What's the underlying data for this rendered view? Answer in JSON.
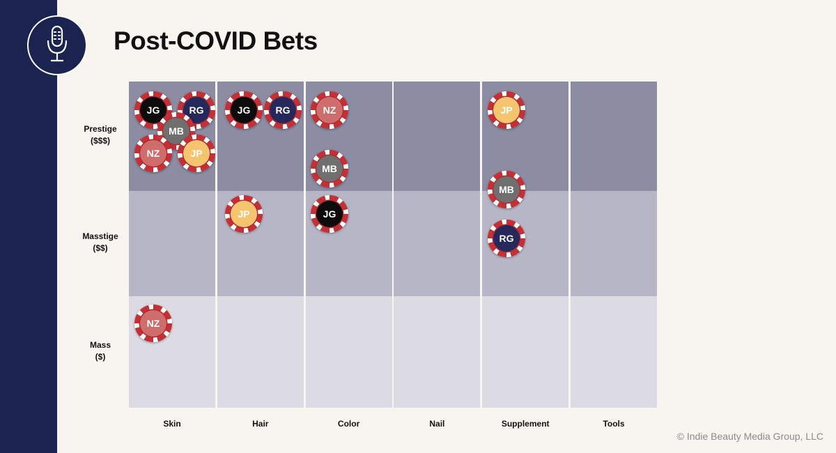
{
  "slide": {
    "title": "Post-COVID Bets",
    "copyright": "© Indie Beauty Media Group, LLC"
  },
  "icons": {
    "badge": "microphone-icon"
  },
  "grid": {
    "columns": [
      "Skin",
      "Hair",
      "Color",
      "Nail",
      "Supplement",
      "Tools"
    ],
    "rows": [
      {
        "name": "Prestige",
        "price": "($$$)",
        "color": "#8c8ca2"
      },
      {
        "name": "Masstige",
        "price": "($$)",
        "color": "#b6b6c6"
      },
      {
        "name": "Mass",
        "price": "($)",
        "color": "#dcdbe3"
      }
    ]
  },
  "chip_colors": {
    "JG": "#0c0c0c",
    "RG": "#25285a",
    "MB": "#6f6f6f",
    "NZ": "#cf6c6c",
    "JP": "#f4c56e"
  },
  "chips": [
    {
      "initials": "JG",
      "column": "Skin",
      "tier": "Prestige"
    },
    {
      "initials": "RG",
      "column": "Skin",
      "tier": "Prestige"
    },
    {
      "initials": "MB",
      "column": "Skin",
      "tier": "Prestige"
    },
    {
      "initials": "NZ",
      "column": "Skin",
      "tier": "Prestige"
    },
    {
      "initials": "JP",
      "column": "Skin",
      "tier": "Prestige"
    },
    {
      "initials": "NZ",
      "column": "Skin",
      "tier": "Mass"
    },
    {
      "initials": "JG",
      "column": "Hair",
      "tier": "Prestige"
    },
    {
      "initials": "RG",
      "column": "Hair",
      "tier": "Prestige"
    },
    {
      "initials": "JP",
      "column": "Hair",
      "tier": "Masstige"
    },
    {
      "initials": "NZ",
      "column": "Color",
      "tier": "Prestige"
    },
    {
      "initials": "MB",
      "column": "Color",
      "tier": "Prestige"
    },
    {
      "initials": "JG",
      "column": "Color",
      "tier": "Masstige"
    },
    {
      "initials": "JP",
      "column": "Supplement",
      "tier": "Prestige"
    },
    {
      "initials": "MB",
      "column": "Supplement",
      "tier": "Prestige/Masstige"
    },
    {
      "initials": "RG",
      "column": "Supplement",
      "tier": "Masstige"
    }
  ]
}
